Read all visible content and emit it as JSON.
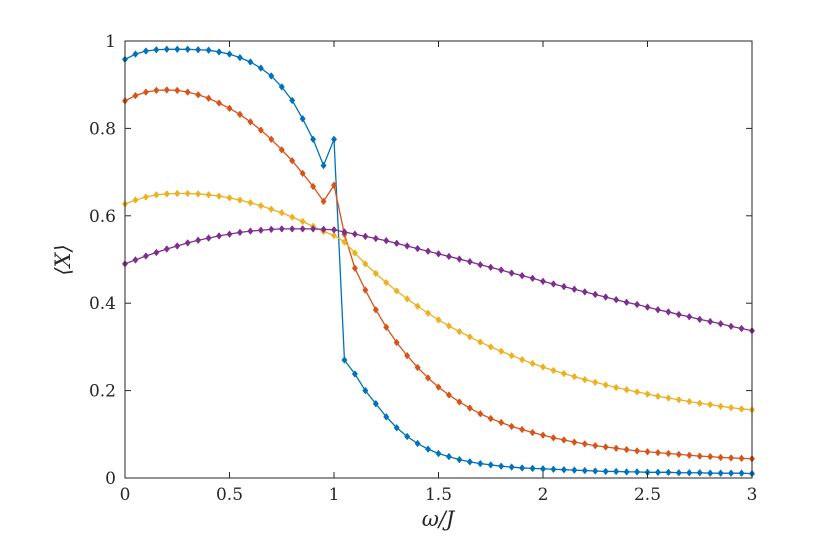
{
  "chart_data": {
    "type": "line",
    "title": "",
    "xlabel": "ω/J",
    "ylabel": "⟨X⟩",
    "xlim": [
      0,
      3
    ],
    "ylim": [
      0,
      1
    ],
    "xticks": [
      0,
      0.5,
      1,
      1.5,
      2,
      2.5,
      3
    ],
    "xtick_labels": [
      "0",
      "0.5",
      "1",
      "1.5",
      "2",
      "2.5",
      "3"
    ],
    "yticks": [
      0,
      0.2,
      0.4,
      0.6,
      0.8,
      1
    ],
    "ytick_labels": [
      "0",
      "0.2",
      "0.4",
      "0.6",
      "0.8",
      "1"
    ],
    "grid": false,
    "legend": false,
    "marker": "diamond",
    "x": [
      0,
      0.05,
      0.1,
      0.15,
      0.2,
      0.25,
      0.3,
      0.35,
      0.4,
      0.45,
      0.5,
      0.55,
      0.6,
      0.65,
      0.7,
      0.75,
      0.8,
      0.85,
      0.9,
      0.95,
      1,
      1.05,
      1.1,
      1.15,
      1.2,
      1.25,
      1.3,
      1.35,
      1.4,
      1.45,
      1.5,
      1.55,
      1.6,
      1.65,
      1.7,
      1.75,
      1.8,
      1.85,
      1.9,
      1.95,
      2,
      2.05,
      2.1,
      2.15,
      2.2,
      2.25,
      2.3,
      2.35,
      2.4,
      2.45,
      2.5,
      2.55,
      2.6,
      2.65,
      2.7,
      2.75,
      2.8,
      2.85,
      2.9,
      2.95,
      3
    ],
    "series": [
      {
        "color": "#0072BD",
        "values": [
          0.958,
          0.97,
          0.977,
          0.98,
          0.981,
          0.981,
          0.981,
          0.98,
          0.979,
          0.975,
          0.97,
          0.962,
          0.952,
          0.938,
          0.92,
          0.895,
          0.864,
          0.822,
          0.775,
          0.715,
          0.775,
          0.27,
          0.238,
          0.2,
          0.17,
          0.14,
          0.115,
          0.095,
          0.079,
          0.066,
          0.056,
          0.049,
          0.042,
          0.037,
          0.033,
          0.03,
          0.027,
          0.025,
          0.023,
          0.022,
          0.021,
          0.02,
          0.019,
          0.018,
          0.017,
          0.016,
          0.015,
          0.015,
          0.014,
          0.014,
          0.013,
          0.013,
          0.013,
          0.012,
          0.012,
          0.012,
          0.011,
          0.011,
          0.011,
          0.011,
          0.01
        ]
      },
      {
        "color": "#D95319",
        "values": [
          0.863,
          0.875,
          0.883,
          0.887,
          0.888,
          0.887,
          0.883,
          0.877,
          0.869,
          0.858,
          0.846,
          0.832,
          0.815,
          0.796,
          0.775,
          0.751,
          0.726,
          0.697,
          0.667,
          0.633,
          0.67,
          0.558,
          0.48,
          0.43,
          0.385,
          0.345,
          0.31,
          0.28,
          0.253,
          0.229,
          0.208,
          0.19,
          0.174,
          0.16,
          0.147,
          0.136,
          0.127,
          0.118,
          0.111,
          0.104,
          0.098,
          0.092,
          0.087,
          0.082,
          0.078,
          0.074,
          0.071,
          0.068,
          0.065,
          0.062,
          0.06,
          0.058,
          0.056,
          0.054,
          0.052,
          0.05,
          0.049,
          0.047,
          0.046,
          0.045,
          0.044
        ]
      },
      {
        "color": "#EDB120",
        "values": [
          0.627,
          0.636,
          0.643,
          0.648,
          0.65,
          0.651,
          0.651,
          0.65,
          0.648,
          0.645,
          0.641,
          0.636,
          0.63,
          0.623,
          0.615,
          0.607,
          0.597,
          0.587,
          0.576,
          0.564,
          0.555,
          0.54,
          0.515,
          0.49,
          0.468,
          0.447,
          0.428,
          0.41,
          0.393,
          0.377,
          0.362,
          0.348,
          0.335,
          0.323,
          0.311,
          0.3,
          0.29,
          0.28,
          0.271,
          0.262,
          0.254,
          0.246,
          0.239,
          0.232,
          0.225,
          0.219,
          0.213,
          0.207,
          0.202,
          0.197,
          0.192,
          0.187,
          0.183,
          0.179,
          0.175,
          0.171,
          0.168,
          0.164,
          0.161,
          0.158,
          0.156
        ]
      },
      {
        "color": "#7E2F8E",
        "values": [
          0.49,
          0.499,
          0.508,
          0.516,
          0.524,
          0.531,
          0.538,
          0.544,
          0.549,
          0.554,
          0.558,
          0.562,
          0.565,
          0.567,
          0.569,
          0.57,
          0.57,
          0.57,
          0.57,
          0.569,
          0.568,
          0.563,
          0.558,
          0.553,
          0.548,
          0.543,
          0.537,
          0.531,
          0.525,
          0.519,
          0.513,
          0.507,
          0.501,
          0.495,
          0.488,
          0.482,
          0.476,
          0.469,
          0.463,
          0.457,
          0.45,
          0.444,
          0.438,
          0.432,
          0.426,
          0.42,
          0.414,
          0.408,
          0.402,
          0.397,
          0.391,
          0.385,
          0.38,
          0.374,
          0.369,
          0.363,
          0.358,
          0.353,
          0.347,
          0.342,
          0.337
        ]
      }
    ]
  }
}
